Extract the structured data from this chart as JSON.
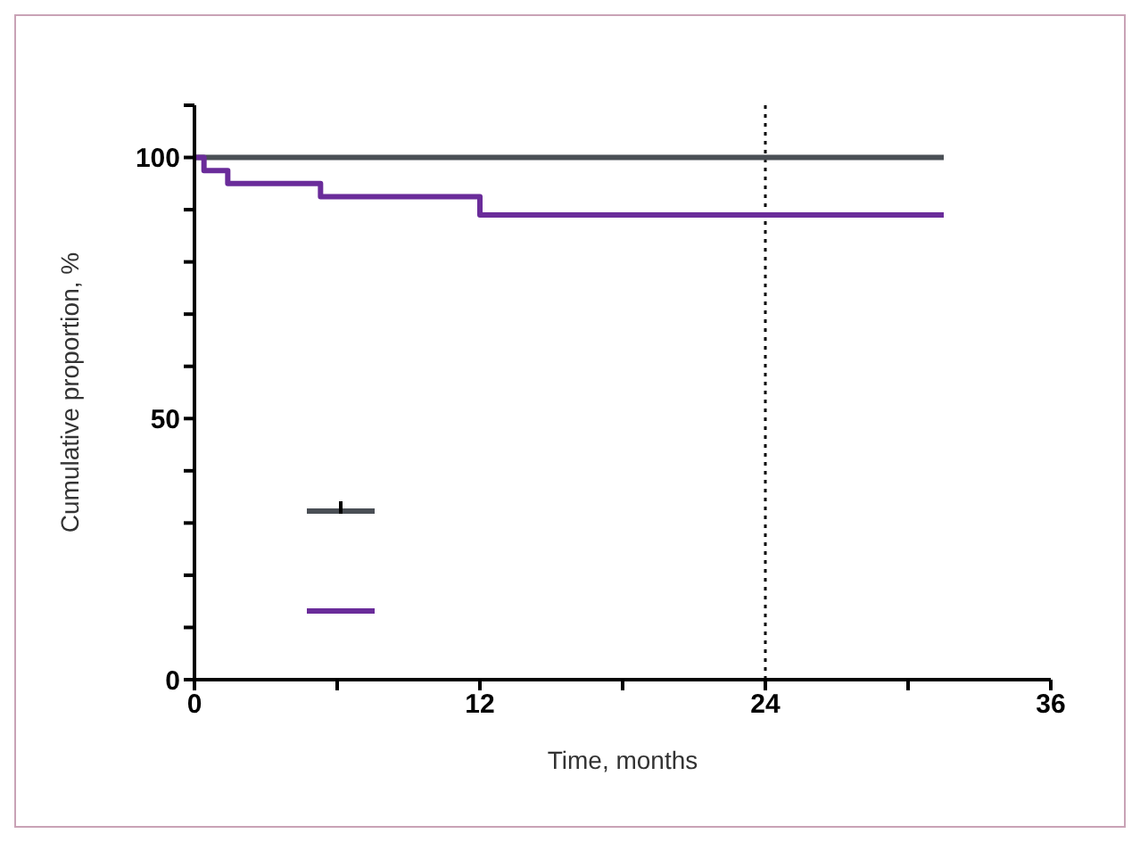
{
  "chart_data": {
    "type": "step",
    "xlabel": "Time, months",
    "ylabel": "Cumulative proportion, %",
    "xlim": [
      0,
      36
    ],
    "xticks": [
      0,
      {
        "value": 6,
        "label": null
      },
      12,
      {
        "value": 18,
        "label": null
      },
      24,
      {
        "value": 30,
        "label": null
      },
      36
    ],
    "ylim": [
      0,
      110
    ],
    "yticks": [
      0,
      {
        "value": 10,
        "label": null
      },
      {
        "value": 20,
        "label": null
      },
      {
        "value": 30,
        "label": null
      },
      {
        "value": 40,
        "label": null
      },
      50,
      {
        "value": 60,
        "label": null
      },
      {
        "value": 70,
        "label": null
      },
      {
        "value": 80,
        "label": null
      },
      {
        "value": 90,
        "label": null
      },
      100,
      {
        "value": 110,
        "label": null
      }
    ],
    "series": [
      {
        "color": "#4a4f55",
        "x": [
          0,
          31.5
        ],
        "values": [
          100,
          100
        ]
      },
      {
        "color": "#6a2c9a",
        "x": [
          0,
          0.4,
          1.4,
          5.3,
          12,
          31.5
        ],
        "values": [
          100,
          97.5,
          95,
          92.5,
          89,
          89
        ]
      }
    ],
    "ref_lines": [
      {
        "axis": "x",
        "value": 24,
        "line_style": "dotted",
        "color": "#000000"
      }
    ],
    "marker": "none"
  }
}
